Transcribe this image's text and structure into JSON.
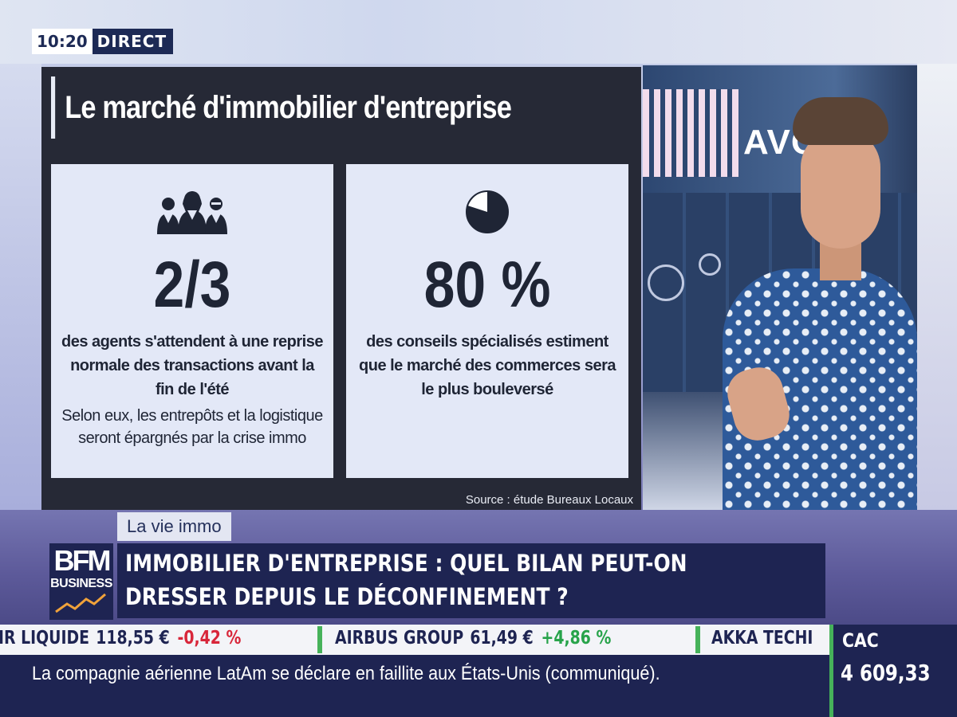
{
  "clock": {
    "time": "10:20",
    "status": "DIRECT"
  },
  "infographic": {
    "title": "Le marché d'immobilier d'entreprise",
    "cards": [
      {
        "icon": "people-group-icon",
        "figure": "2/3",
        "description": "des agents s'attendent à une reprise normale des transactions avant la fin de l'été",
        "note": "Selon eux, les entrepôts et la logistique seront épargnés par la crise immo"
      },
      {
        "icon": "pie-chart-icon",
        "figure": "80 %",
        "pie_fraction": 0.8,
        "description": "des conseils spécialisés estiment que le marché des commerces sera le plus bouleversé"
      }
    ],
    "source": "Source : étude Bureaux Locaux"
  },
  "studio": {
    "screen_text": "AVO"
  },
  "program": {
    "rubric": "La vie immo"
  },
  "channel": {
    "logo_main": "BFM",
    "logo_sub": "BUSINESS"
  },
  "headline": {
    "line1": "IMMOBILIER D'ENTREPRISE : QUEL BILAN PEUT-ON",
    "line2": "DRESSER DEPUIS LE DÉCONFINEMENT ?"
  },
  "ticker": [
    {
      "name": "IR LIQUIDE",
      "price": "118,55 €",
      "change": "-0,42 %",
      "direction": "down"
    },
    {
      "name": "AIRBUS GROUP",
      "price": "61,49 €",
      "change": "+4,86 %",
      "direction": "up"
    },
    {
      "name": "AKKA TECHI",
      "price": "",
      "change": "",
      "direction": ""
    }
  ],
  "news_crawl": "La compagnie aérienne LatAm se déclare en faillite aux États-Unis (communiqué).",
  "index": {
    "name": "CAC",
    "value": "4 609,33"
  },
  "colors": {
    "navy": "#1e2452",
    "negative": "#d8263a",
    "positive": "#27a34a",
    "card": "#e3e8f7",
    "panel": "#262936"
  }
}
